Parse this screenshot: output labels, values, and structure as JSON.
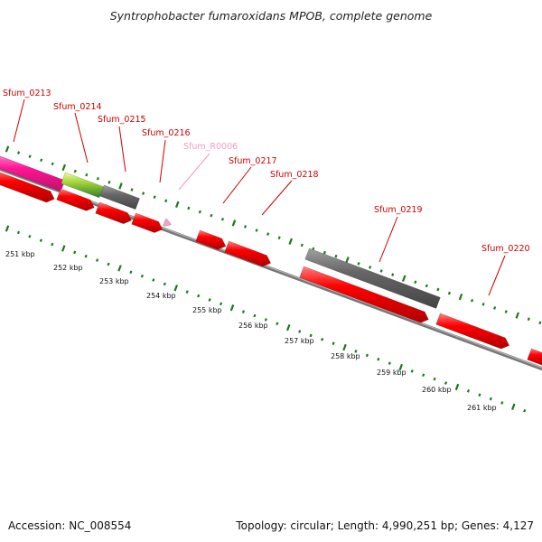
{
  "title": "Syntrophobacter fumaroxidans MPOB, complete genome",
  "footer": {
    "accession": "Accession: NC_008554",
    "summary": "Topology: circular; Length: 4,990,251 bp; Genes: 4,127"
  },
  "colors": {
    "cds": "#ff0000",
    "pseudo": "#666666",
    "trna": "#f4a0c8",
    "magenta": "#ff2aa0",
    "lime": "#9acd32",
    "backbone": "#888888",
    "tick": "#1a7a1a",
    "label": "#cc0000",
    "label_faded": "#f299c0"
  },
  "genes": [
    {
      "label": "Sfum_0213",
      "faded": false
    },
    {
      "label": "Sfum_0214",
      "faded": false
    },
    {
      "label": "Sfum_0215",
      "faded": false
    },
    {
      "label": "Sfum_0216",
      "faded": false
    },
    {
      "label": "Sfum_R0006",
      "faded": true
    },
    {
      "label": "Sfum_0217",
      "faded": false
    },
    {
      "label": "Sfum_0218",
      "faded": false
    },
    {
      "label": "Sfum_0219",
      "faded": false
    },
    {
      "label": "Sfum_0220",
      "faded": false
    }
  ],
  "kbp_ticks": [
    "251 kbp",
    "252 kbp",
    "253 kbp",
    "254 kbp",
    "255 kbp",
    "256 kbp",
    "257 kbp",
    "258 kbp",
    "259 kbp",
    "260 kbp",
    "261 kbp"
  ]
}
